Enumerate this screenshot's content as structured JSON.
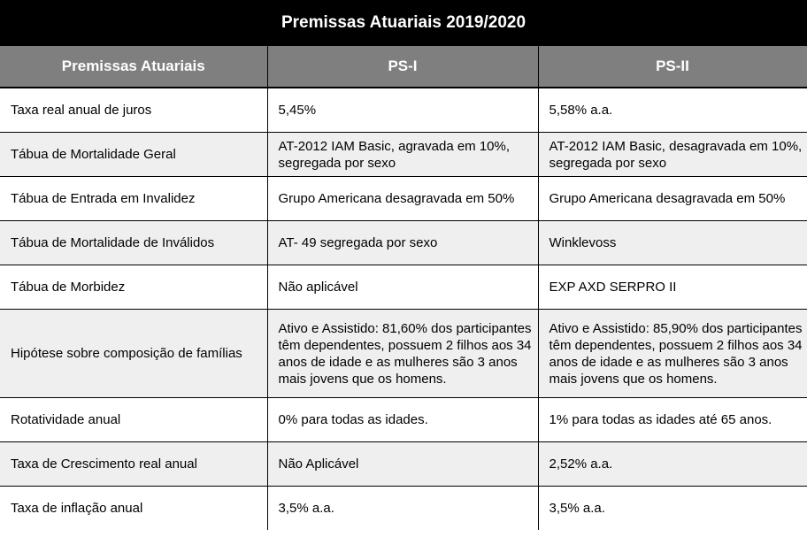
{
  "title": "Premissas Atuariais 2019/2020",
  "headers": [
    "Premissas Atuariais",
    "PS-I",
    "PS-II"
  ],
  "rows": [
    {
      "label": "Taxa real anual de juros",
      "ps1": "5,45%",
      "ps2": "5,58% a.a."
    },
    {
      "label": "Tábua de Mortalidade Geral",
      "ps1": "AT-2012 IAM Basic, agravada em 10%, segregada por sexo",
      "ps2": "AT-2012 IAM Basic, desagravada em 10%, segregada por sexo"
    },
    {
      "label": "Tábua de Entrada em Invalidez",
      "ps1": "Grupo Americana desagravada em 50%",
      "ps2": "Grupo Americana desagravada em 50%"
    },
    {
      "label": "Tábua de Mortalidade de Inválidos",
      "ps1": "AT- 49 segregada por sexo",
      "ps2": "Winklevoss"
    },
    {
      "label": "Tábua de Morbidez",
      "ps1": "Não aplicável",
      "ps2": "EXP AXD SERPRO II"
    },
    {
      "label": "Hipótese sobre composição de famílias",
      "ps1": "Ativo e Assistido: 81,60% dos participantes têm dependentes, possuem 2 filhos aos 34 anos de idade e as mulheres são 3 anos mais jovens que os homens.",
      "ps2": "Ativo e Assistido: 85,90% dos participantes têm dependentes, possuem 2 filhos aos 34 anos de idade e as mulheres são 3 anos mais jovens que os homens."
    },
    {
      "label": "Rotatividade anual",
      "ps1": "0% para todas as idades.",
      "ps2": "1% para todas as idades até 65 anos."
    },
    {
      "label": "Taxa de Crescimento real anual",
      "ps1": "Não Aplicável",
      "ps2": "2,52% a.a."
    },
    {
      "label": "Taxa de inflação anual",
      "ps1": "3,5% a.a.",
      "ps2": "3,5% a.a."
    }
  ]
}
